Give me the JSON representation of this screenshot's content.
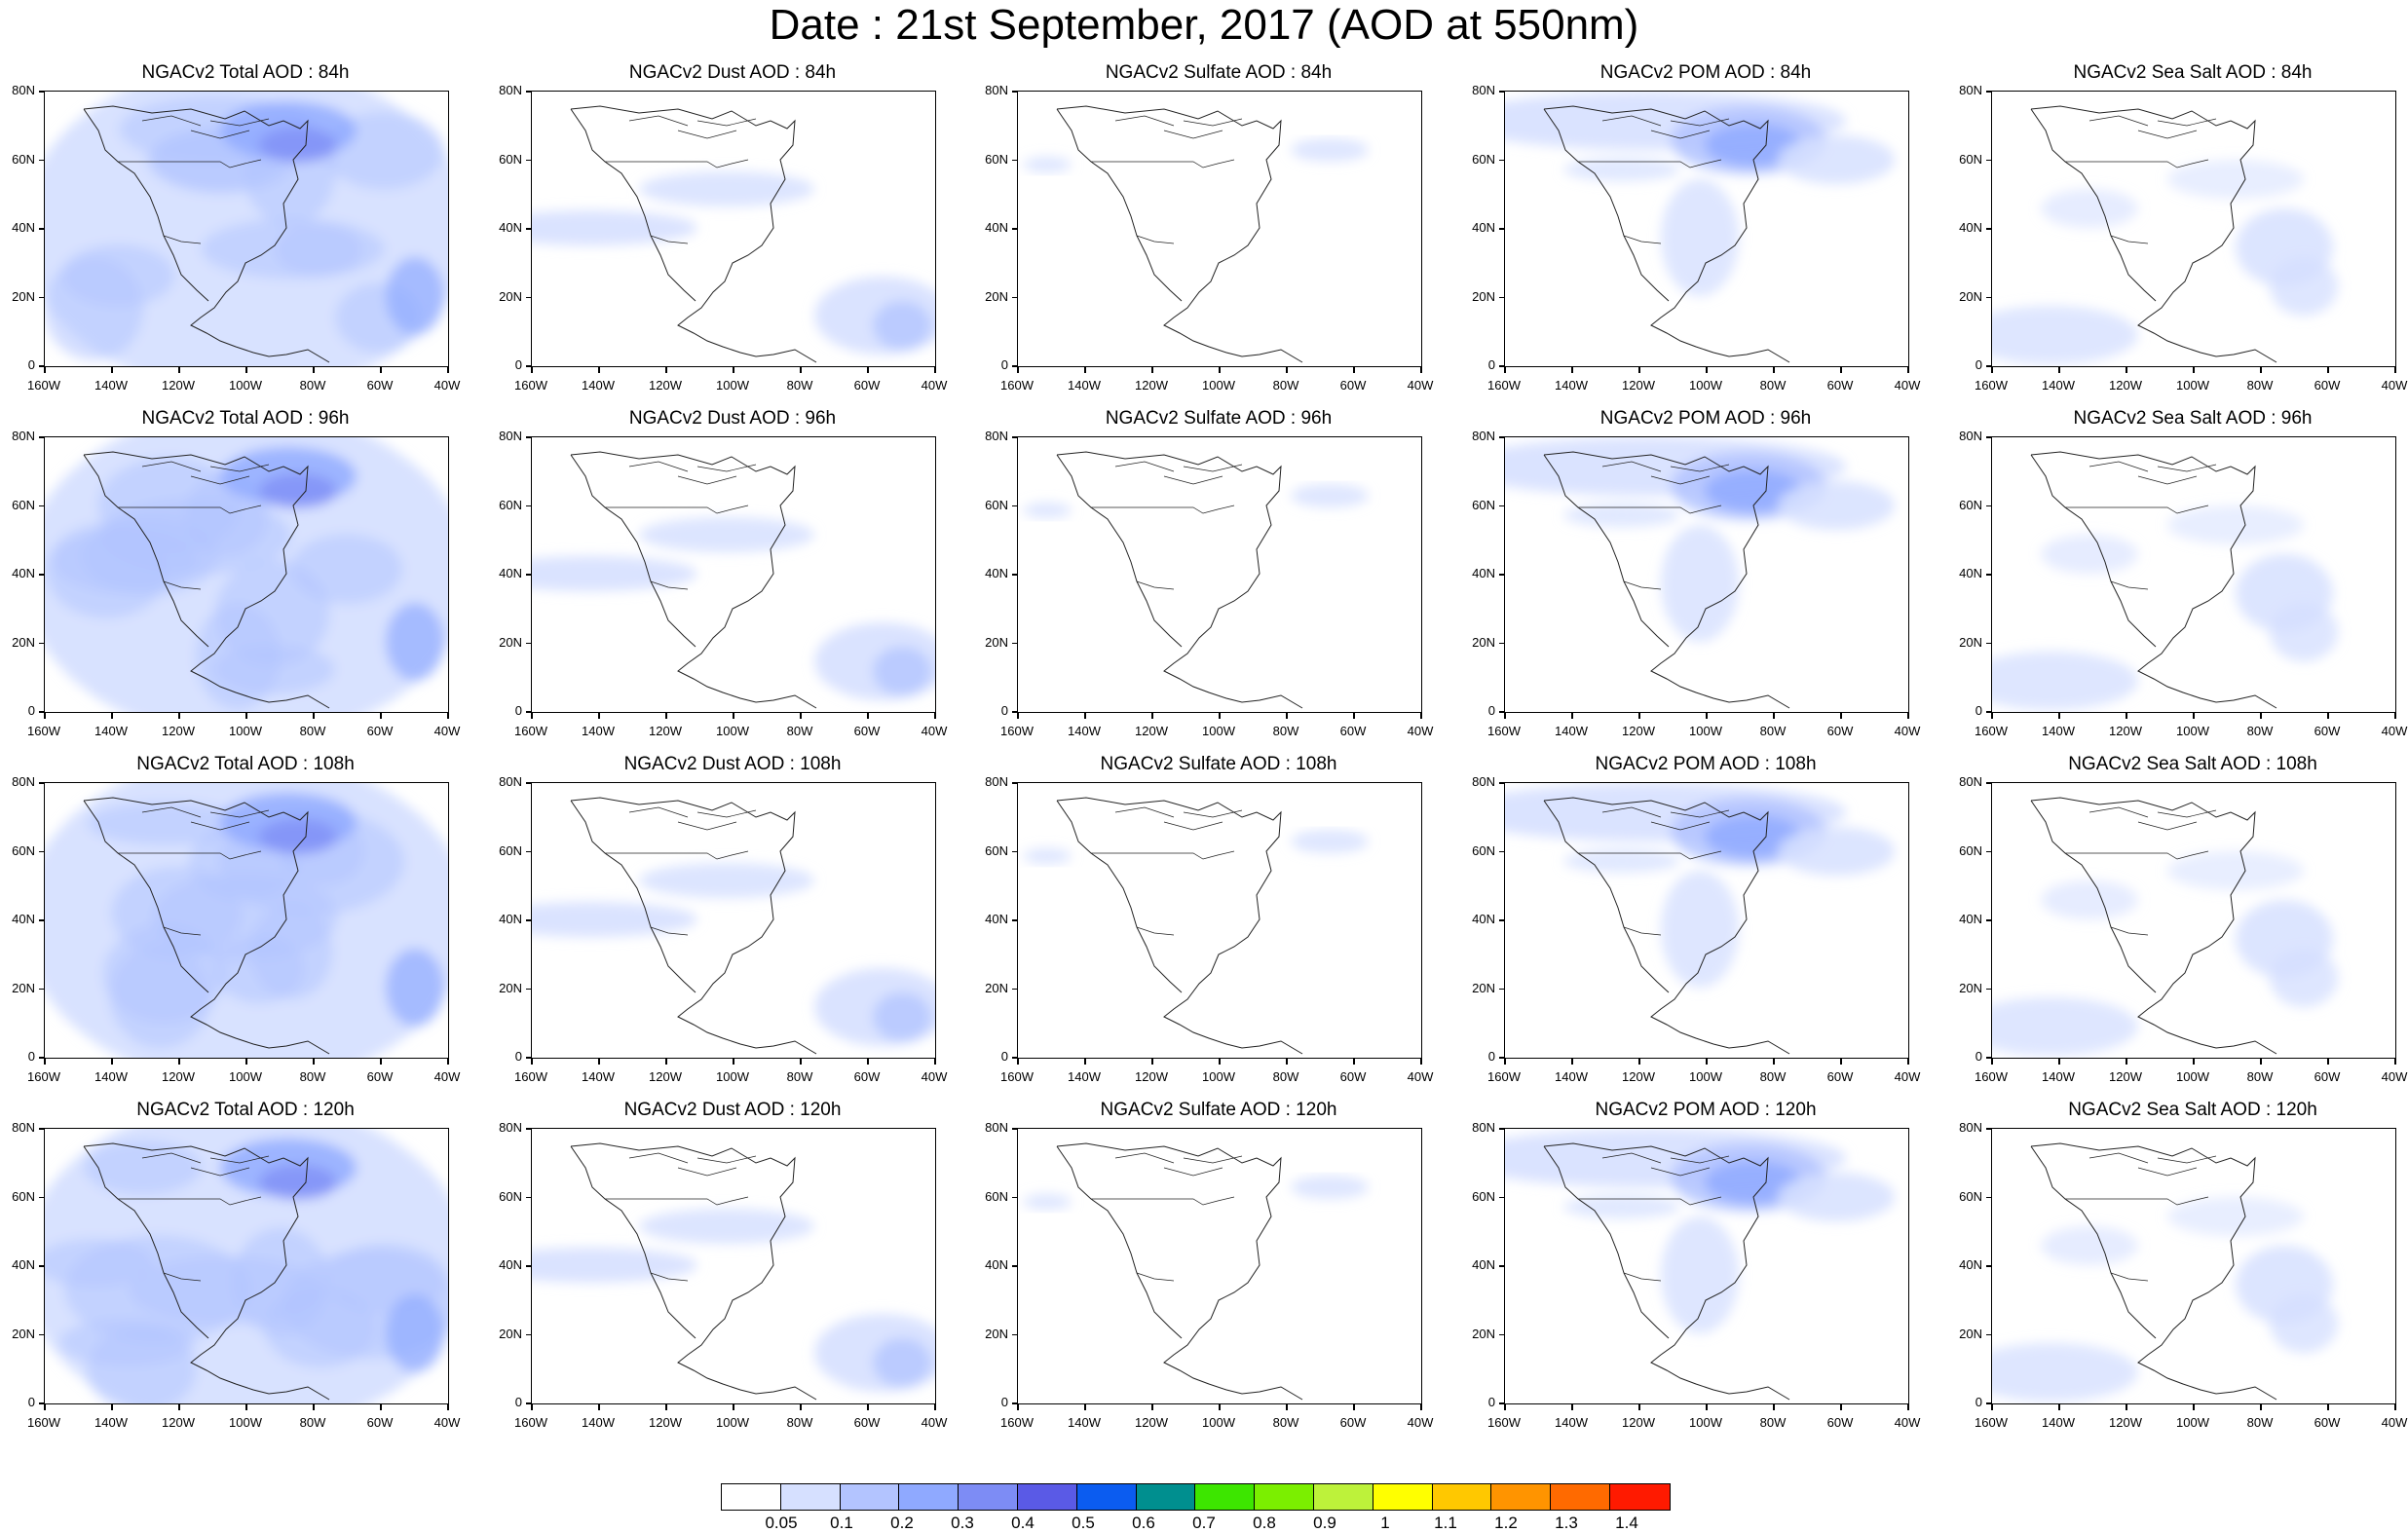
{
  "title": "Date : 21st September, 2017 (AOD at 550nm)",
  "panels": [
    {
      "title": "NGACv2 Total AOD : 84h",
      "hours": "84h",
      "species": "total"
    },
    {
      "title": "NGACv2 Dust AOD : 84h",
      "hours": "84h",
      "species": "dust"
    },
    {
      "title": "NGACv2 Sulfate AOD : 84h",
      "hours": "84h",
      "species": "sulfate"
    },
    {
      "title": "NGACv2 POM AOD : 84h",
      "hours": "84h",
      "species": "pom"
    },
    {
      "title": "NGACv2 Sea Salt AOD : 84h",
      "hours": "84h",
      "species": "seasalt"
    },
    {
      "title": "NGACv2 Total AOD : 96h",
      "hours": "96h",
      "species": "total"
    },
    {
      "title": "NGACv2 Dust AOD : 96h",
      "hours": "96h",
      "species": "dust"
    },
    {
      "title": "NGACv2 Sulfate AOD : 96h",
      "hours": "96h",
      "species": "sulfate"
    },
    {
      "title": "NGACv2 POM AOD : 96h",
      "hours": "96h",
      "species": "pom"
    },
    {
      "title": "NGACv2 Sea Salt AOD : 96h",
      "hours": "96h",
      "species": "seasalt"
    },
    {
      "title": "NGACv2 Total AOD : 108h",
      "hours": "108h",
      "species": "total"
    },
    {
      "title": "NGACv2 Dust AOD : 108h",
      "hours": "108h",
      "species": "dust"
    },
    {
      "title": "NGACv2 Sulfate AOD : 108h",
      "hours": "108h",
      "species": "sulfate"
    },
    {
      "title": "NGACv2 POM AOD : 108h",
      "hours": "108h",
      "species": "pom"
    },
    {
      "title": "NGACv2 Sea Salt AOD : 108h",
      "hours": "108h",
      "species": "seasalt"
    },
    {
      "title": "NGACv2 Total AOD : 120h",
      "hours": "120h",
      "species": "total"
    },
    {
      "title": "NGACv2 Dust AOD : 120h",
      "hours": "120h",
      "species": "dust"
    },
    {
      "title": "NGACv2 Sulfate AOD : 120h",
      "hours": "120h",
      "species": "sulfate"
    },
    {
      "title": "NGACv2 POM AOD : 120h",
      "hours": "120h",
      "species": "pom"
    },
    {
      "title": "NGACv2 Sea Salt  AOD : 120h",
      "hours": "120h",
      "species": "seasalt"
    }
  ],
  "axes": {
    "lat_labels": [
      "0",
      "20N",
      "40N",
      "60N",
      "80N"
    ],
    "lon_labels": [
      "160W",
      "140W",
      "120W",
      "100W",
      "80W",
      "60W",
      "40W"
    ]
  },
  "colorbar": {
    "labels": [
      "0.05",
      "0.1",
      "0.2",
      "0.3",
      "0.4",
      "0.5",
      "0.6",
      "0.7",
      "0.8",
      "0.9",
      "1",
      "1.1",
      "1.2",
      "1.3",
      "1.4"
    ],
    "colors": [
      "#ffffff",
      "#d6e0ff",
      "#b3c4ff",
      "#8fa9ff",
      "#7d8cf5",
      "#5a5ae6",
      "#0b5cf0",
      "#008f8f",
      "#3de600",
      "#7bef00",
      "#bdf23a",
      "#ffff00",
      "#ffc800",
      "#ff9400",
      "#ff6a00",
      "#ff1a00"
    ]
  }
}
